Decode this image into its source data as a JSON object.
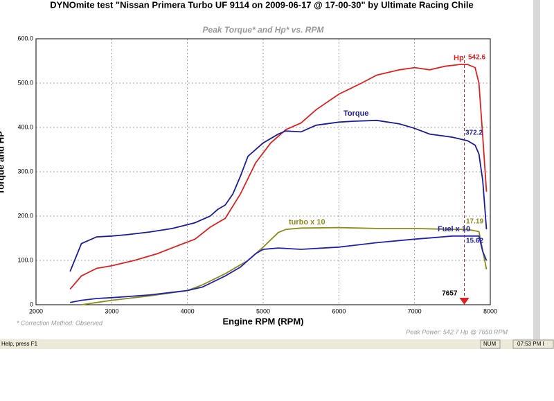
{
  "chart_data": {
    "type": "line",
    "title": "DYNOmite test \"Nissan Primera Turbo UF 9114 on 2009-06-17 @ 17-00-30\" by Ultimate Racing Chile",
    "subtitle": "Peak Torque* and Hp* vs. RPM",
    "x_label": "Engine RPM (RPM)",
    "y_label": "Torque and HP",
    "xlim": [
      2000,
      8000
    ],
    "ylim": [
      0,
      600
    ],
    "xticks": [
      2000,
      3000,
      4000,
      5000,
      6000,
      7000,
      8000
    ],
    "yticks": [
      {
        "value": 0,
        "label": "0"
      },
      {
        "value": 100,
        "label": "100.0"
      },
      {
        "value": 200,
        "label": "200.0"
      },
      {
        "value": 300,
        "label": "300.0"
      },
      {
        "value": 400,
        "label": "400.0"
      },
      {
        "value": 500,
        "label": "500.0"
      },
      {
        "value": 600,
        "label": "600.0"
      }
    ],
    "grid": true,
    "series": [
      {
        "name": "Hp",
        "color": "#e02020",
        "end_value": 542.6,
        "x": [
          2450,
          2600,
          2800,
          3000,
          3300,
          3600,
          3900,
          4100,
          4300,
          4500,
          4700,
          4900,
          5100,
          5300,
          5500,
          5700,
          6000,
          6300,
          6500,
          6800,
          7000,
          7200,
          7400,
          7600,
          7700,
          7800,
          7850,
          7900,
          7950
        ],
        "values": [
          35,
          65,
          82,
          88,
          100,
          115,
          135,
          148,
          175,
          195,
          250,
          320,
          365,
          395,
          410,
          440,
          475,
          500,
          518,
          530,
          535,
          530,
          538,
          542,
          542,
          535,
          500,
          380,
          255
        ]
      },
      {
        "name": "Torque",
        "color": "#1a1a9a",
        "end_value": 372.2,
        "x": [
          2450,
          2600,
          2800,
          3000,
          3200,
          3500,
          3800,
          4100,
          4300,
          4400,
          4500,
          4600,
          4700,
          4800,
          5000,
          5200,
          5300,
          5500,
          5700,
          6000,
          6200,
          6500,
          6800,
          7000,
          7200,
          7500,
          7700,
          7800,
          7850,
          7900,
          7950
        ],
        "values": [
          75,
          138,
          153,
          155,
          158,
          164,
          172,
          185,
          200,
          215,
          225,
          250,
          290,
          335,
          365,
          385,
          392,
          390,
          405,
          412,
          414,
          416,
          408,
          398,
          385,
          378,
          370,
          360,
          340,
          280,
          170
        ]
      },
      {
        "name": "turbo x 10",
        "color": "#8c8c1a",
        "end_value": 17.19,
        "x": [
          2600,
          2800,
          3000,
          3500,
          4000,
          4200,
          4500,
          4800,
          5000,
          5200,
          5300,
          5500,
          6000,
          6500,
          7000,
          7500,
          7700,
          7850,
          7950
        ],
        "values": [
          0,
          5,
          10,
          20,
          32,
          45,
          70,
          100,
          130,
          163,
          170,
          173,
          174,
          172,
          172,
          170,
          170,
          165,
          80
        ]
      },
      {
        "name": "Fuel x 10",
        "color": "#2020b0",
        "end_value": 15.62,
        "x": [
          2450,
          2600,
          2800,
          3000,
          3500,
          4000,
          4200,
          4500,
          4700,
          4900,
          5000,
          5200,
          5500,
          6000,
          6500,
          7000,
          7300,
          7500,
          7850,
          7900,
          7950
        ],
        "values": [
          5,
          10,
          14,
          16,
          22,
          32,
          40,
          65,
          85,
          115,
          125,
          128,
          125,
          130,
          140,
          148,
          152,
          155,
          155,
          120,
          100
        ]
      }
    ],
    "marker_x": 7657,
    "correction_note": "* Correction Method: Observed",
    "peak_note": "Peak Power: 542.7 Hp @ 7650 RPM"
  },
  "status_bar": {
    "help": "Help, press F1",
    "num": "NUM",
    "time": "07:53 PM I"
  }
}
